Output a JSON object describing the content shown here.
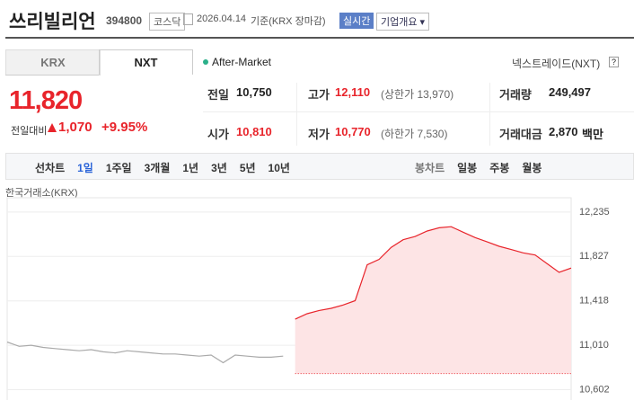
{
  "header": {
    "name": "쓰리빌리언",
    "code": "394800",
    "market": "코스닥",
    "date": "2026.04.14",
    "basis": "기준(KRX 장마감)",
    "realtime": "실시간",
    "overview": "기업개요"
  },
  "tabs": [
    "KRX",
    "NXT"
  ],
  "after_market": "After-Market",
  "nxt": {
    "label": "넥스트레이드(NXT)",
    "help": "?"
  },
  "price": {
    "current": "11,820",
    "change_label": "전일대비",
    "change": "1,070",
    "rate": "+9.95%"
  },
  "quotes": [
    [
      {
        "label": "전일",
        "value": "10,750"
      },
      {
        "label": "고가",
        "value": "12,110",
        "note": "(상한가 13,970)"
      },
      {
        "label": "거래량",
        "value": "249,497"
      }
    ],
    [
      {
        "label": "시가",
        "value": "10,810"
      },
      {
        "label": "저가",
        "value": "10,770",
        "note": "(하한가 7,530)"
      },
      {
        "label": "거래대금",
        "value": "2,870",
        "unit": "백만"
      }
    ]
  ],
  "toolbar": {
    "line_chart": "선차트",
    "periods": [
      "1일",
      "1주일",
      "3개월",
      "1년",
      "3년",
      "5년",
      "10년"
    ],
    "candle_chart": "봉차트",
    "candles": [
      "일봉",
      "주봉",
      "월봉"
    ]
  },
  "chart_data": {
    "type": "line",
    "title": "한국거래소(KRX)",
    "ylim": [
      10540,
      12300
    ],
    "yticks": [
      {
        "value": 12235,
        "label": "12,235"
      },
      {
        "value": 11827,
        "label": "11,827"
      },
      {
        "value": 11418,
        "label": "11,418"
      },
      {
        "value": 11010,
        "label": "11,010"
      },
      {
        "value": 10602,
        "label": "10,602"
      }
    ],
    "baseline": 10750,
    "series": [
      {
        "color": "#aaaaaa",
        "values": [
          11040,
          11000,
          11010,
          10990,
          10980,
          10970,
          10960,
          10970,
          10950,
          10940,
          10960,
          10950,
          10940,
          10930,
          10930,
          10920,
          10910,
          10920,
          10850,
          10920,
          10910,
          10900,
          10900,
          10910,
          null,
          null,
          null,
          null,
          null,
          null,
          null,
          null,
          null,
          null,
          null,
          null,
          null,
          null,
          null,
          null,
          null,
          null,
          null,
          null,
          null,
          null,
          null,
          null
        ]
      },
      {
        "color": "#e8242b",
        "fill": "#fde4e5",
        "values": [
          null,
          null,
          null,
          null,
          null,
          null,
          null,
          null,
          null,
          null,
          null,
          null,
          null,
          null,
          null,
          null,
          null,
          null,
          null,
          null,
          null,
          null,
          null,
          null,
          11250,
          11300,
          11330,
          11350,
          11380,
          11420,
          11750,
          11800,
          11910,
          11980,
          12010,
          12060,
          12090,
          12100,
          12050,
          12000,
          11960,
          11920,
          11890,
          11860,
          11840,
          11760,
          11680,
          11720
        ]
      }
    ]
  }
}
